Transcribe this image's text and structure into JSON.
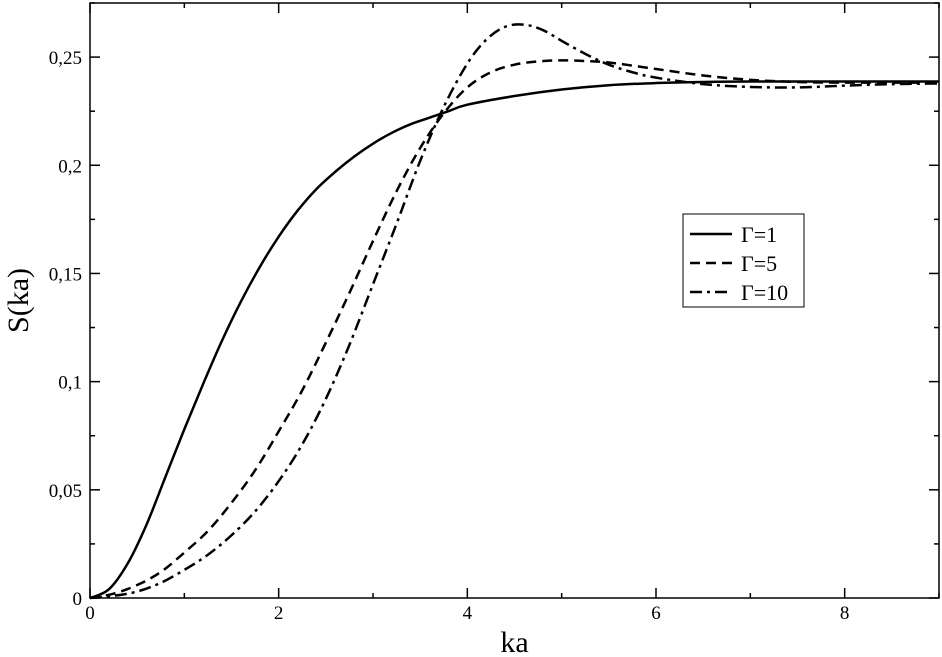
{
  "chart_data": {
    "type": "line",
    "title": "",
    "xlabel": "ka",
    "ylabel": "S(ka)",
    "xlim": [
      0,
      9
    ],
    "ylim": [
      0,
      0.275
    ],
    "grid": false,
    "legend_position": "right",
    "x_ticks": [
      0,
      2,
      4,
      6,
      8
    ],
    "x_tick_labels": [
      "0",
      "2",
      "4",
      "6",
      "8"
    ],
    "y_ticks": [
      0,
      0.05,
      0.1,
      0.15,
      0.2,
      0.25
    ],
    "y_tick_labels": [
      "0",
      "0,05",
      "0,1",
      "0,15",
      "0,2",
      "0,25"
    ],
    "series": [
      {
        "name": "Γ=1",
        "style": "solid",
        "x": [
          0,
          0.2,
          0.4,
          0.6,
          0.8,
          1.0,
          1.2,
          1.4,
          1.6,
          1.8,
          2.0,
          2.2,
          2.4,
          2.6,
          2.8,
          3.0,
          3.2,
          3.4,
          3.6,
          3.8,
          4.0,
          4.5,
          5.0,
          5.5,
          6.0,
          6.5,
          7.0,
          8.0,
          9.0
        ],
        "y": [
          0,
          0.004,
          0.016,
          0.034,
          0.056,
          0.078,
          0.099,
          0.119,
          0.137,
          0.153,
          0.167,
          0.179,
          0.189,
          0.197,
          0.204,
          0.21,
          0.215,
          0.219,
          0.222,
          0.225,
          0.228,
          0.232,
          0.235,
          0.237,
          0.238,
          0.2385,
          0.2387,
          0.2387,
          0.2387
        ]
      },
      {
        "name": "Γ=5",
        "style": "dashed",
        "x": [
          0,
          0.25,
          0.5,
          0.75,
          1.0,
          1.25,
          1.5,
          1.75,
          2.0,
          2.25,
          2.5,
          2.75,
          3.0,
          3.25,
          3.5,
          3.75,
          4.0,
          4.25,
          4.5,
          4.75,
          5.0,
          5.25,
          5.5,
          6.0,
          6.5,
          7.0,
          7.5,
          8.0,
          8.5,
          9.0
        ],
        "y": [
          0,
          0.002,
          0.006,
          0.012,
          0.021,
          0.031,
          0.044,
          0.059,
          0.077,
          0.096,
          0.118,
          0.141,
          0.165,
          0.188,
          0.208,
          0.224,
          0.236,
          0.243,
          0.2465,
          0.248,
          0.2485,
          0.2482,
          0.2475,
          0.2445,
          0.2415,
          0.2395,
          0.2385,
          0.2382,
          0.2382,
          0.2382
        ]
      },
      {
        "name": "Γ=10",
        "style": "dashdot",
        "x": [
          0,
          0.25,
          0.5,
          0.75,
          1.0,
          1.25,
          1.5,
          1.75,
          2.0,
          2.25,
          2.5,
          2.75,
          3.0,
          3.25,
          3.5,
          3.75,
          4.0,
          4.2,
          4.4,
          4.6,
          4.8,
          5.0,
          5.25,
          5.5,
          5.75,
          6.0,
          6.5,
          7.0,
          7.5,
          8.0,
          8.5,
          9.0
        ],
        "y": [
          0,
          0.001,
          0.003,
          0.007,
          0.013,
          0.02,
          0.029,
          0.04,
          0.054,
          0.071,
          0.092,
          0.117,
          0.145,
          0.173,
          0.202,
          0.227,
          0.247,
          0.258,
          0.264,
          0.265,
          0.2625,
          0.2575,
          0.2515,
          0.2465,
          0.243,
          0.2405,
          0.2375,
          0.2362,
          0.236,
          0.2368,
          0.2375,
          0.2378
        ]
      }
    ]
  }
}
